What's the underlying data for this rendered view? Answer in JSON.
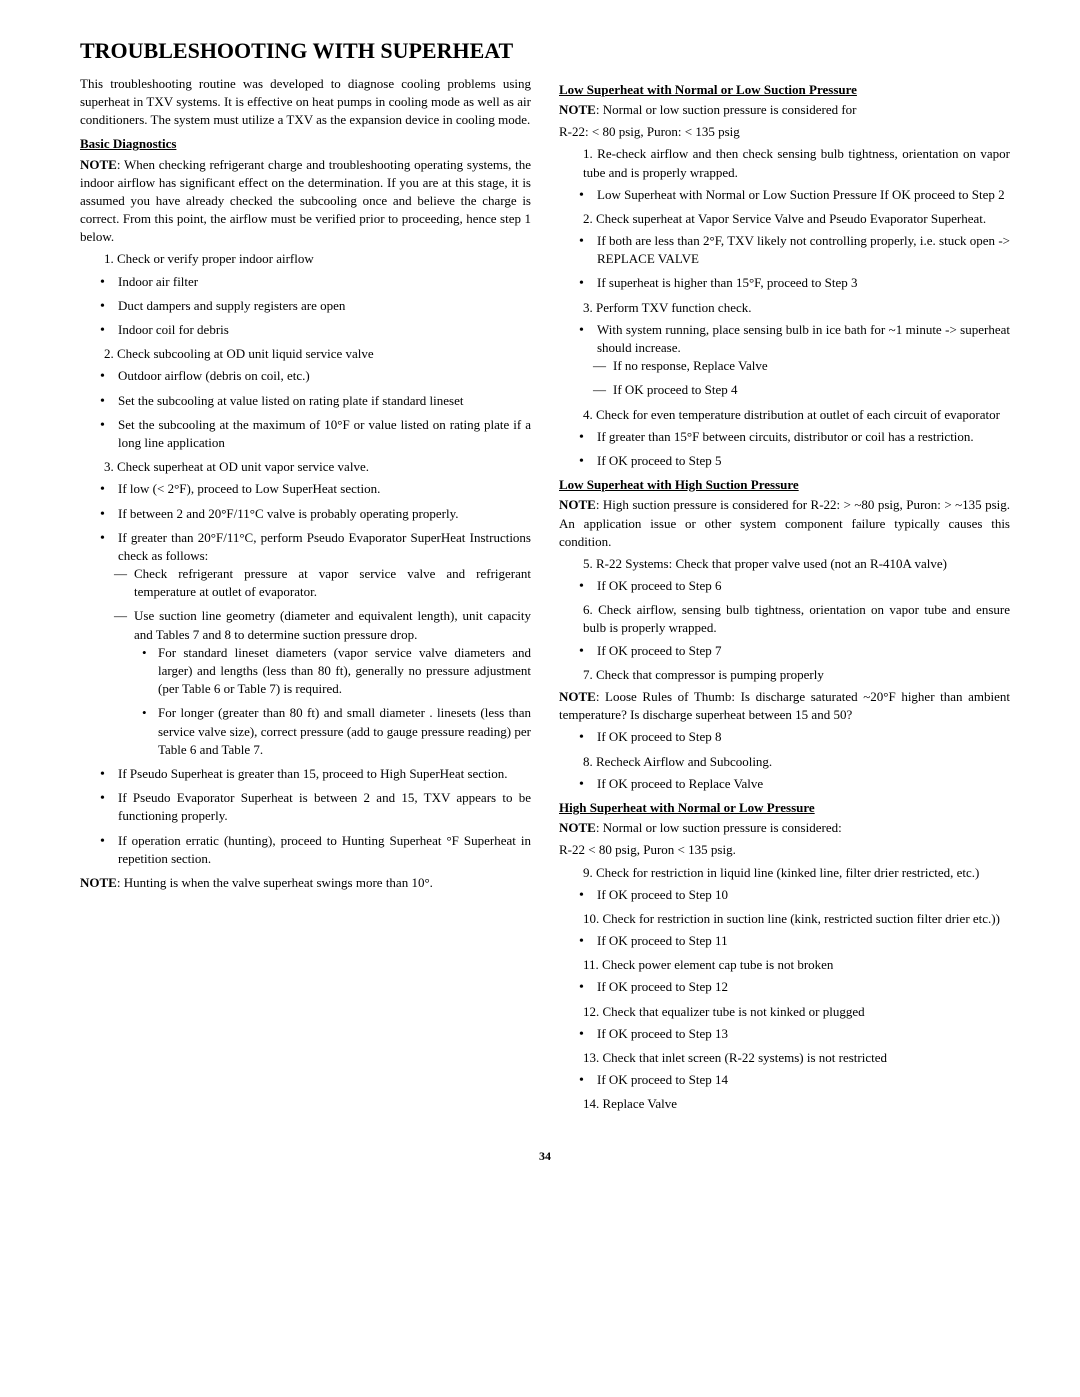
{
  "page": {
    "title": "TROUBLESHOOTING WITH SUPERHEAT",
    "number": "34"
  },
  "left": {
    "intro": "This troubleshooting routine was developed to diagnose cooling problems using superheat in TXV systems. It is effective on heat pumps in cooling mode as well as air conditioners. The system must utilize a TXV as the expansion device in cooling mode.",
    "basic_head": "Basic Diagnostics",
    "note1_lead": "NOTE",
    "note1": ": When checking refrigerant charge and troubleshooting operating systems, the indoor airflow has significant effect on the determination. If you are at this stage, it is assumed you have already checked the subcooling once and believe the charge is correct. From this point, the airflow must be verified prior to proceeding, hence step 1 below.",
    "step1": "1. Check or verify proper indoor airflow",
    "s1b1": "Indoor air filter",
    "s1b2": "Duct dampers and supply registers are open",
    "s1b3": "Indoor coil for debris",
    "step2": "2. Check subcooling at OD unit liquid service valve",
    "s2b1": "Outdoor airflow (debris on coil, etc.)",
    "s2b2": "Set the subcooling at value listed on rating plate if standard lineset",
    "s2b3": "Set the subcooling at the maximum of 10°F or value listed on rating plate if a long line application",
    "step3": "3. Check superheat at OD unit vapor service valve.",
    "s3b1": "If low (< 2°F), proceed to Low SuperHeat section.",
    "s3b2": "If between 2 and 20°F/11°C valve is probably operating properly.",
    "s3b3": "If greater than 20°F/11°C, perform Pseudo Evaporator SuperHeat Instructions check as follows:",
    "s3d1": "Check refrigerant pressure at vapor service valve and refrigerant temperature at outlet of evaporator.",
    "s3d2": "Use suction line geometry (diameter and equivalent length), unit capacity and Tables 7 and 8 to determine suction pressure drop.",
    "s3d2b1": "For standard lineset diameters (vapor service valve diameters and larger) and lengths (less than 80 ft), generally no pressure adjustment (per Table 6 or Table 7) is required.",
    "s3d2b2": "For longer (greater than 80 ft) and small diameter . linesets (less than service valve size), correct pressure (add to gauge pressure reading) per Table 6 and Table 7.",
    "s3b4": "If Pseudo Superheat is greater than 15, proceed to High SuperHeat section.",
    "s3b5": "If Pseudo Evaporator Superheat is between 2 and 15, TXV appears to be functioning properly.",
    "s3b6": "If operation erratic (hunting), proceed to Hunting Superheat °F Superheat in repetition section.",
    "note2_lead": "NOTE",
    "note2": ": Hunting is when the valve superheat swings more than 10°."
  },
  "right": {
    "head_a": "Low Superheat with Normal or Low Suction Pressure",
    "noteA_lead": "NOTE",
    "noteA": ": Normal or low suction pressure is considered for",
    "noteA2": "R-22: < 80 psig, Puron: < 135 psig",
    "a1": "1. Re-check airflow and then check sensing bulb tightness, orientation on vapor tube and is properly wrapped.",
    "a1b": "Low Superheat with Normal or Low Suction Pressure If OK proceed to Step 2",
    "a2": "2. Check superheat at Vapor Service Valve and Pseudo Evaporator Superheat.",
    "a2b1": "If both are less than 2°F, TXV likely not controlling properly, i.e. stuck open -> REPLACE VALVE",
    "a2b2": "If superheat is higher than 15°F, proceed to Step 3",
    "a3": "3. Perform TXV function check.",
    "a3b1": "With system running, place sensing bulb in ice bath for ~1 minute -> superheat should increase.",
    "a3d1": "If no response, Replace Valve",
    "a3d2": "If OK proceed to Step 4",
    "a4": "4. Check for even temperature distribution at outlet of each circuit of evaporator",
    "a4b1": "If greater than 15°F between circuits, distributor or coil has a restriction.",
    "a4b2": "If OK proceed to Step 5",
    "head_b": "Low Superheat with High Suction Pressure",
    "noteB_lead": "NOTE",
    "noteB": ": High suction pressure is considered for R-22: > ~80 psig, Puron: > ~135 psig. An application issue or other system component failure typically causes this condition.",
    "b5": "5. R-22 Systems: Check that proper valve used (not an R-410A valve)",
    "b5b": "If OK proceed to Step 6",
    "b6": "6. Check airflow, sensing bulb tightness, orientation on vapor tube and ensure bulb is properly wrapped.",
    "b6b": "If OK proceed to Step 7",
    "b7": "7. Check that compressor is pumping properly",
    "noteC_lead": "NOTE",
    "noteC": ": Loose Rules of Thumb: Is discharge saturated ~20°F higher than ambient temperature? Is discharge superheat between 15 and 50?",
    "c7b": "If OK proceed to Step 8",
    "c8": "8. Recheck Airflow and Subcooling.",
    "c8b": "If OK proceed to Replace Valve",
    "head_c": "High Superheat with Normal or Low Pressure",
    "noteD_lead": "NOTE",
    "noteD": ": Normal or low suction pressure is considered:",
    "noteD2": "R-22 < 80 psig, Puron < 135 psig.",
    "d9": "9. Check for restriction in liquid line (kinked line, filter drier restricted, etc.)",
    "d9b": "If OK proceed to Step 10",
    "d10": "10. Check for restriction in suction line (kink, restricted suction filter drier etc.))",
    "d10b": "If OK proceed to Step 11",
    "d11": "11. Check power element cap tube is not broken",
    "d11b": "If OK proceed to Step 12",
    "d12": "12. Check that equalizer tube is not kinked or plugged",
    "d12b": "If OK proceed to Step 13",
    "d13": "13. Check that inlet screen (R-22 systems) is not restricted",
    "d13b": "If OK proceed to Step 14",
    "d14": "14. Replace Valve"
  }
}
